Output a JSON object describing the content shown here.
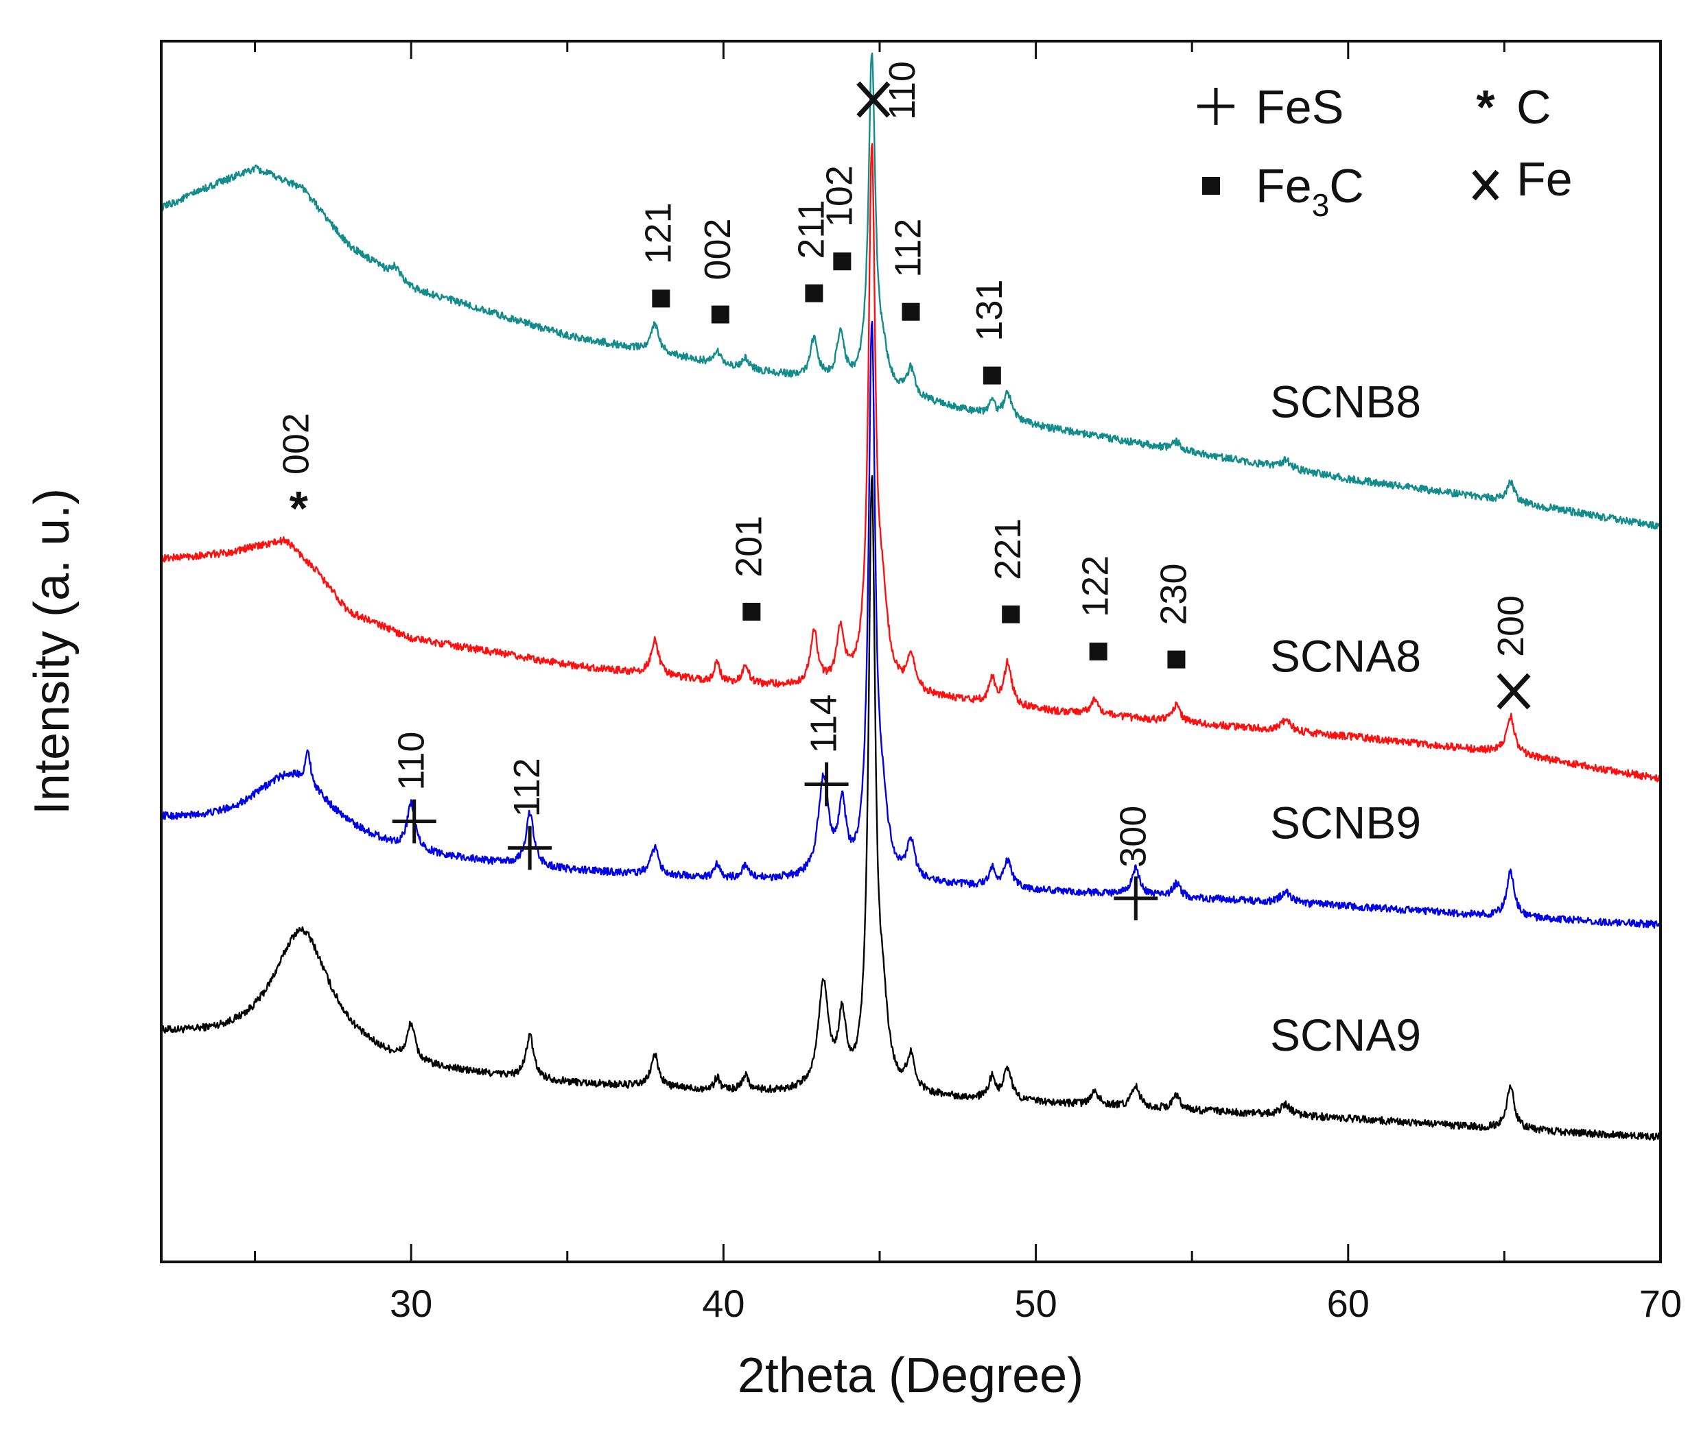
{
  "chart_data": {
    "type": "line",
    "title": "",
    "xlabel": "2theta (Degree)",
    "ylabel": "Intensity (a. u.)",
    "xlim": [
      22,
      70
    ],
    "ylim": [
      0,
      4.6
    ],
    "x_ticks": [
      30,
      40,
      50,
      60,
      70
    ],
    "y_ticks_labeled": false,
    "grid": false,
    "legend": {
      "position": "top-right",
      "entries": [
        {
          "symbol": "+",
          "label": "FeS"
        },
        {
          "symbol": "*",
          "label": "C"
        },
        {
          "symbol": "■",
          "label": "Fe",
          "subscript": "3",
          "suffix": "C"
        },
        {
          "symbol": "X",
          "label": "Fe"
        }
      ]
    },
    "series": [
      {
        "name": "SCNA9",
        "color": "#000000",
        "offset": 0.3,
        "baseline": [
          [
            22,
            0.55
          ],
          [
            26.5,
            0.5
          ],
          [
            30,
            0.42
          ],
          [
            35,
            0.37
          ],
          [
            40,
            0.34
          ],
          [
            45,
            0.33
          ],
          [
            50,
            0.3
          ],
          [
            55,
            0.27
          ],
          [
            60,
            0.24
          ],
          [
            65,
            0.2
          ],
          [
            70,
            0.17
          ]
        ],
        "peaks": [
          {
            "x": 26.5,
            "h": 0.45,
            "w": 1.1
          },
          {
            "x": 30.0,
            "h": 0.14,
            "w": 0.15
          },
          {
            "x": 33.8,
            "h": 0.16,
            "w": 0.15
          },
          {
            "x": 37.8,
            "h": 0.12,
            "w": 0.15
          },
          {
            "x": 39.8,
            "h": 0.05,
            "w": 0.1
          },
          {
            "x": 40.7,
            "h": 0.06,
            "w": 0.12
          },
          {
            "x": 43.2,
            "h": 0.4,
            "w": 0.2
          },
          {
            "x": 43.8,
            "h": 0.25,
            "w": 0.15
          },
          {
            "x": 44.75,
            "h": 2.25,
            "w": 0.13
          },
          {
            "x": 45.1,
            "h": 0.25,
            "w": 0.2
          },
          {
            "x": 46.0,
            "h": 0.13,
            "w": 0.15
          },
          {
            "x": 48.6,
            "h": 0.08,
            "w": 0.12
          },
          {
            "x": 49.1,
            "h": 0.12,
            "w": 0.15
          },
          {
            "x": 51.9,
            "h": 0.05,
            "w": 0.15
          },
          {
            "x": 53.2,
            "h": 0.08,
            "w": 0.15
          },
          {
            "x": 54.5,
            "h": 0.05,
            "w": 0.15
          },
          {
            "x": 58.0,
            "h": 0.04,
            "w": 0.2
          },
          {
            "x": 65.2,
            "h": 0.16,
            "w": 0.15
          }
        ]
      },
      {
        "name": "SCNB9",
        "color": "#0000e6",
        "offset": 1.1,
        "baseline": [
          [
            22,
            0.55
          ],
          [
            26.5,
            0.48
          ],
          [
            30,
            0.42
          ],
          [
            35,
            0.37
          ],
          [
            40,
            0.34
          ],
          [
            45,
            0.33
          ],
          [
            50,
            0.3
          ],
          [
            55,
            0.27
          ],
          [
            60,
            0.24
          ],
          [
            65,
            0.2
          ],
          [
            70,
            0.17
          ]
        ],
        "peaks": [
          {
            "x": 26.2,
            "h": 0.25,
            "w": 1.6
          },
          {
            "x": 26.7,
            "h": 0.12,
            "w": 0.1
          },
          {
            "x": 30.0,
            "h": 0.17,
            "w": 0.15
          },
          {
            "x": 33.8,
            "h": 0.2,
            "w": 0.15
          },
          {
            "x": 37.8,
            "h": 0.1,
            "w": 0.15
          },
          {
            "x": 39.8,
            "h": 0.05,
            "w": 0.1
          },
          {
            "x": 40.7,
            "h": 0.05,
            "w": 0.12
          },
          {
            "x": 43.2,
            "h": 0.37,
            "w": 0.2
          },
          {
            "x": 43.8,
            "h": 0.25,
            "w": 0.15
          },
          {
            "x": 44.75,
            "h": 2.05,
            "w": 0.13
          },
          {
            "x": 45.1,
            "h": 0.2,
            "w": 0.2
          },
          {
            "x": 46.0,
            "h": 0.14,
            "w": 0.15
          },
          {
            "x": 48.6,
            "h": 0.07,
            "w": 0.12
          },
          {
            "x": 49.1,
            "h": 0.1,
            "w": 0.15
          },
          {
            "x": 53.2,
            "h": 0.1,
            "w": 0.15
          },
          {
            "x": 54.5,
            "h": 0.05,
            "w": 0.15
          },
          {
            "x": 58.0,
            "h": 0.04,
            "w": 0.2
          },
          {
            "x": 65.2,
            "h": 0.17,
            "w": 0.15
          }
        ]
      },
      {
        "name": "SCNA8",
        "color": "#ff1010",
        "offset": 1.7,
        "baseline": [
          [
            22,
            0.95
          ],
          [
            24,
            0.97
          ],
          [
            26,
            1.02
          ],
          [
            27,
            0.9
          ],
          [
            28,
            0.75
          ],
          [
            30,
            0.65
          ],
          [
            35,
            0.55
          ],
          [
            40,
            0.48
          ],
          [
            45,
            0.45
          ],
          [
            50,
            0.38
          ],
          [
            55,
            0.33
          ],
          [
            60,
            0.28
          ],
          [
            65,
            0.22
          ],
          [
            70,
            0.12
          ]
        ],
        "peaks": [
          {
            "x": 37.8,
            "h": 0.13,
            "w": 0.15
          },
          {
            "x": 39.8,
            "h": 0.08,
            "w": 0.1
          },
          {
            "x": 40.7,
            "h": 0.07,
            "w": 0.12
          },
          {
            "x": 42.9,
            "h": 0.2,
            "w": 0.15
          },
          {
            "x": 43.75,
            "h": 0.21,
            "w": 0.15
          },
          {
            "x": 44.75,
            "h": 2.0,
            "w": 0.13
          },
          {
            "x": 45.1,
            "h": 0.25,
            "w": 0.2
          },
          {
            "x": 46.0,
            "h": 0.14,
            "w": 0.15
          },
          {
            "x": 48.6,
            "h": 0.09,
            "w": 0.12
          },
          {
            "x": 49.1,
            "h": 0.16,
            "w": 0.15
          },
          {
            "x": 51.9,
            "h": 0.06,
            "w": 0.15
          },
          {
            "x": 54.5,
            "h": 0.06,
            "w": 0.15
          },
          {
            "x": 58.0,
            "h": 0.04,
            "w": 0.2
          },
          {
            "x": 65.2,
            "h": 0.14,
            "w": 0.15
          }
        ]
      },
      {
        "name": "SCNB8",
        "color": "#148c8c",
        "offset": 2.45,
        "baseline": [
          [
            22,
            1.52
          ],
          [
            23.5,
            1.6
          ],
          [
            25,
            1.67
          ],
          [
            26.5,
            1.6
          ],
          [
            28,
            1.38
          ],
          [
            30,
            1.22
          ],
          [
            35,
            1.04
          ],
          [
            40,
            0.93
          ],
          [
            45,
            0.83
          ],
          [
            50,
            0.7
          ],
          [
            55,
            0.6
          ],
          [
            60,
            0.5
          ],
          [
            65,
            0.42
          ],
          [
            70,
            0.32
          ]
        ],
        "peaks": [
          {
            "x": 29.5,
            "h": 0.04,
            "w": 0.2
          },
          {
            "x": 37.8,
            "h": 0.11,
            "w": 0.15
          },
          {
            "x": 39.8,
            "h": 0.05,
            "w": 0.1
          },
          {
            "x": 40.7,
            "h": 0.04,
            "w": 0.12
          },
          {
            "x": 42.9,
            "h": 0.15,
            "w": 0.15
          },
          {
            "x": 43.75,
            "h": 0.18,
            "w": 0.15
          },
          {
            "x": 44.75,
            "h": 1.25,
            "w": 0.13
          },
          {
            "x": 45.1,
            "h": 0.1,
            "w": 0.2
          },
          {
            "x": 46.0,
            "h": 0.1,
            "w": 0.15
          },
          {
            "x": 48.6,
            "h": 0.05,
            "w": 0.12
          },
          {
            "x": 49.1,
            "h": 0.1,
            "w": 0.15
          },
          {
            "x": 54.5,
            "h": 0.03,
            "w": 0.15
          },
          {
            "x": 58.0,
            "h": 0.03,
            "w": 0.2
          },
          {
            "x": 65.2,
            "h": 0.07,
            "w": 0.15
          }
        ]
      }
    ],
    "annotations": [
      {
        "series": "SCNB8",
        "symbol": "■",
        "x": 38.0,
        "y": 3.63,
        "hkl": "121"
      },
      {
        "series": "SCNB8",
        "symbol": "■",
        "x": 39.9,
        "y": 3.57,
        "hkl": "002"
      },
      {
        "series": "SCNB8",
        "symbol": "■",
        "x": 42.9,
        "y": 3.65,
        "hkl": "211"
      },
      {
        "series": "SCNB8",
        "symbol": "■",
        "x": 43.8,
        "y": 3.77,
        "hkl": "102"
      },
      {
        "series": "SCNB8",
        "symbol": "■",
        "x": 46.0,
        "y": 3.58,
        "hkl": "112"
      },
      {
        "series": "SCNB8",
        "symbol": "■",
        "x": 48.6,
        "y": 3.34,
        "hkl": "131"
      },
      {
        "series": "SCNB8",
        "symbol": "X",
        "x": 44.8,
        "y": 4.38,
        "hkl": "110"
      },
      {
        "series": "SCNA8",
        "symbol": "*",
        "x": 26.4,
        "y": 2.85,
        "hkl": "002"
      },
      {
        "series": "SCNA8",
        "symbol": "■",
        "x": 40.9,
        "y": 2.45,
        "hkl": "201"
      },
      {
        "series": "SCNA8",
        "symbol": "■",
        "x": 49.2,
        "y": 2.44,
        "hkl": "221"
      },
      {
        "series": "SCNA8",
        "symbol": "■",
        "x": 52.0,
        "y": 2.3,
        "hkl": "122"
      },
      {
        "series": "SCNA8",
        "symbol": "■",
        "x": 54.5,
        "y": 2.27,
        "hkl": "230"
      },
      {
        "series": "SCNA8",
        "symbol": "X",
        "x": 65.3,
        "y": 2.15,
        "hkl": "200"
      },
      {
        "series": "SCNB9",
        "symbol": "+",
        "x": 30.1,
        "y": 1.66,
        "hkl": "110"
      },
      {
        "series": "SCNB9",
        "symbol": "+",
        "x": 33.8,
        "y": 1.56,
        "hkl": "112"
      },
      {
        "series": "SCNB9",
        "symbol": "+",
        "x": 43.3,
        "y": 1.8,
        "hkl": "114"
      },
      {
        "series": "SCNB9",
        "symbol": "+",
        "x": 53.2,
        "y": 1.37,
        "hkl": "300"
      }
    ]
  }
}
